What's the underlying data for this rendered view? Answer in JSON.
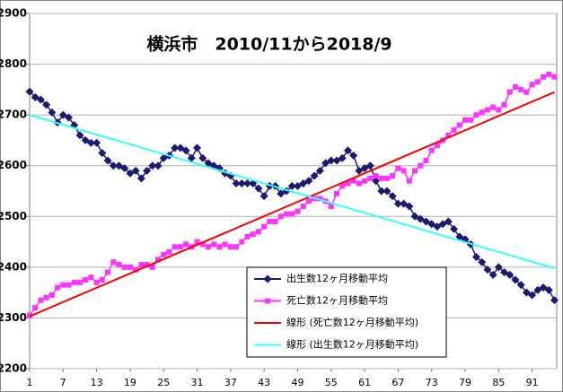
{
  "chart_data": {
    "type": "line",
    "title": "横浜市　2010/11から2018/9",
    "x": [
      1,
      2,
      3,
      4,
      5,
      6,
      7,
      8,
      9,
      10,
      11,
      12,
      13,
      14,
      15,
      16,
      17,
      18,
      19,
      20,
      21,
      22,
      23,
      24,
      25,
      26,
      27,
      28,
      29,
      30,
      31,
      32,
      33,
      34,
      35,
      36,
      37,
      38,
      39,
      40,
      41,
      42,
      43,
      44,
      45,
      46,
      47,
      48,
      49,
      50,
      51,
      52,
      53,
      54,
      55,
      56,
      57,
      58,
      59,
      60,
      61,
      62,
      63,
      64,
      65,
      66,
      67,
      68,
      69,
      70,
      71,
      72,
      73,
      74,
      75,
      76,
      77,
      78,
      79,
      80,
      81,
      82,
      83,
      84,
      85,
      86,
      87,
      88,
      89,
      90,
      91,
      92,
      93,
      94,
      95
    ],
    "series": [
      {
        "name": "出生数12ヶ月移動平均",
        "color": "#1a1a6e",
        "marker": "diamond",
        "values": [
          2746,
          2735,
          2730,
          2720,
          2705,
          2685,
          2700,
          2695,
          2680,
          2660,
          2650,
          2645,
          2645,
          2625,
          2610,
          2600,
          2600,
          2595,
          2585,
          2590,
          2575,
          2590,
          2600,
          2600,
          2615,
          2620,
          2635,
          2635,
          2630,
          2615,
          2635,
          2615,
          2605,
          2600,
          2595,
          2585,
          2580,
          2565,
          2565,
          2565,
          2565,
          2555,
          2540,
          2560,
          2560,
          2545,
          2550,
          2560,
          2560,
          2565,
          2570,
          2580,
          2590,
          2605,
          2610,
          2610,
          2615,
          2630,
          2620,
          2590,
          2595,
          2600,
          2570,
          2550,
          2550,
          2540,
          2525,
          2525,
          2520,
          2500,
          2495,
          2490,
          2485,
          2480,
          2485,
          2490,
          2475,
          2460,
          2455,
          2445,
          2420,
          2410,
          2395,
          2385,
          2400,
          2390,
          2385,
          2375,
          2365,
          2350,
          2345,
          2355,
          2360,
          2355,
          2335
        ]
      },
      {
        "name": "死亡数12ヶ月移動平均",
        "color": "#ff33ff",
        "marker": "square",
        "values": [
          2305,
          2320,
          2335,
          2340,
          2345,
          2360,
          2365,
          2365,
          2370,
          2370,
          2375,
          2380,
          2370,
          2375,
          2390,
          2410,
          2405,
          2400,
          2400,
          2395,
          2405,
          2405,
          2400,
          2415,
          2425,
          2430,
          2440,
          2440,
          2445,
          2440,
          2450,
          2445,
          2440,
          2445,
          2440,
          2445,
          2440,
          2440,
          2450,
          2460,
          2465,
          2470,
          2480,
          2490,
          2490,
          2500,
          2505,
          2505,
          2510,
          2520,
          2530,
          2535,
          2535,
          2530,
          2520,
          2545,
          2560,
          2565,
          2570,
          2565,
          2570,
          2575,
          2580,
          2575,
          2575,
          2580,
          2595,
          2590,
          2570,
          2590,
          2600,
          2610,
          2630,
          2640,
          2650,
          2660,
          2670,
          2680,
          2690,
          2690,
          2700,
          2705,
          2710,
          2715,
          2710,
          2720,
          2745,
          2755,
          2750,
          2745,
          2760,
          2765,
          2775,
          2780,
          2775
        ]
      },
      {
        "name": "線形 (死亡数12ヶ月移動平均)",
        "color": "#ff0000",
        "x": [
          1,
          95
        ],
        "values": [
          2303,
          2745
        ]
      },
      {
        "name": "線形 (出生数12ヶ月移動平均)",
        "color": "#33ffff",
        "x": [
          1,
          95
        ],
        "values": [
          2700,
          2398
        ]
      }
    ],
    "xlim": [
      1,
      95.4
    ],
    "xticks": [
      1,
      7,
      13,
      19,
      25,
      31,
      37,
      43,
      49,
      55,
      61,
      67,
      73,
      79,
      85,
      91
    ],
    "ylim": [
      2200,
      2900
    ],
    "yticks": [
      2200,
      2300,
      2400,
      2500,
      2600,
      2700,
      2800,
      2900
    ],
    "grid": true,
    "legend": "bottom-center"
  }
}
